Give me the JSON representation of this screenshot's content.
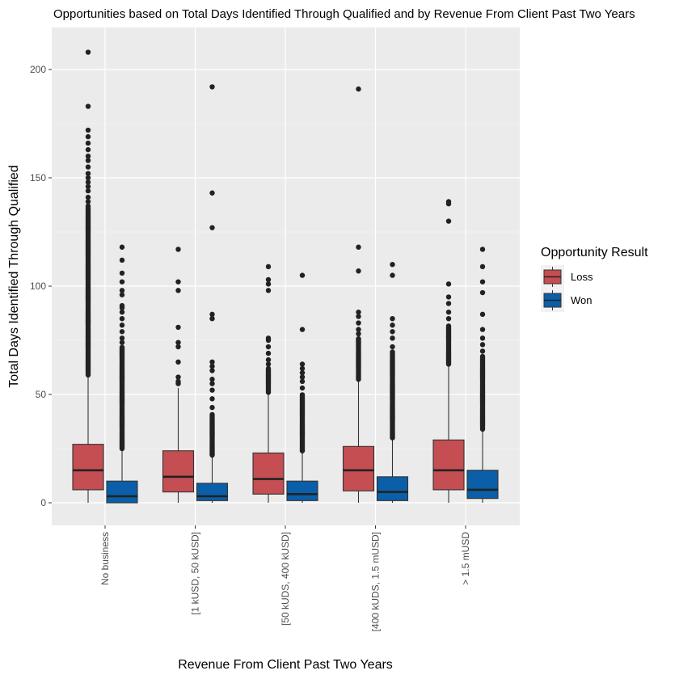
{
  "chart_data": {
    "type": "box",
    "title": "Opportunities based on Total Days Identified Through Qualified and by Revenue From Client Past Two Years",
    "xlabel": "Revenue From Client Past Two Years",
    "ylabel": "Total Days Identified Through Qualified",
    "ylim": [
      -10,
      220
    ],
    "yticks": [
      0,
      50,
      100,
      150,
      200
    ],
    "grid": true,
    "legend": {
      "title": "Opportunity Result",
      "position": "right"
    },
    "categories": [
      "No business",
      "[1 kUSD, 50 kUSD]",
      "[50 kUDS, 400 kUSD]",
      "[400 kUDS, 1.5 mUSD]",
      "> 1.5 mUSD"
    ],
    "series": [
      {
        "name": "Loss",
        "color": "#c44e52",
        "boxes": [
          {
            "min": 0,
            "q1": 6,
            "median": 15,
            "q3": 27,
            "max": 59,
            "outlier_band": [
              59,
              136
            ],
            "outliers": [
              137,
              139,
              141,
              144,
              146,
              148,
              150,
              152,
              155,
              158,
              160,
              163,
              166,
              169,
              172,
              183,
              208
            ]
          },
          {
            "min": 0,
            "q1": 5,
            "median": 12,
            "q3": 24,
            "max": 53,
            "outlier_band": [],
            "outliers": [
              55,
              56,
              58,
              65,
              72,
              74,
              81,
              98,
              102,
              117
            ]
          },
          {
            "min": 0,
            "q1": 4,
            "median": 11,
            "q3": 23,
            "max": 50,
            "outlier_band": [
              51,
              62
            ],
            "outliers": [
              64,
              66,
              69,
              72,
              75,
              76,
              98,
              101,
              103,
              109
            ]
          },
          {
            "min": 0,
            "q1": 5.5,
            "median": 15,
            "q3": 26,
            "max": 56,
            "outlier_band": [
              57,
              76
            ],
            "outliers": [
              78,
              80,
              83,
              86,
              88,
              107,
              118,
              191
            ]
          },
          {
            "min": 0,
            "q1": 6,
            "median": 15,
            "q3": 29,
            "max": 63,
            "outlier_band": [
              64,
              82
            ],
            "outliers": [
              85,
              88,
              92,
              95,
              101,
              130,
              138,
              139
            ]
          }
        ]
      },
      {
        "name": "Won",
        "color": "#0b5fa8",
        "boxes": [
          {
            "min": 0,
            "q1": 0,
            "median": 3,
            "q3": 10,
            "max": 24,
            "outlier_band": [
              25,
              72
            ],
            "outliers": [
              74,
              76,
              79,
              82,
              85,
              88,
              90,
              91,
              96,
              98,
              102,
              106,
              112,
              118
            ]
          },
          {
            "min": 0,
            "q1": 1,
            "median": 3,
            "q3": 9,
            "max": 21,
            "outlier_band": [
              22,
              41
            ],
            "outliers": [
              44,
              48,
              52,
              55,
              57,
              61,
              63,
              65,
              85,
              87,
              127,
              143,
              192
            ]
          },
          {
            "min": 0,
            "q1": 1,
            "median": 4,
            "q3": 10,
            "max": 23,
            "outlier_band": [
              24,
              50
            ],
            "outliers": [
              53,
              56,
              58,
              60,
              62,
              64,
              80,
              105
            ]
          },
          {
            "min": 0,
            "q1": 1,
            "median": 5,
            "q3": 12,
            "max": 29,
            "outlier_band": [
              30,
              70
            ],
            "outliers": [
              72,
              76,
              79,
              82,
              85,
              105,
              110
            ]
          },
          {
            "min": 0,
            "q1": 2,
            "median": 6,
            "q3": 15,
            "max": 33,
            "outlier_band": [
              34,
              68
            ],
            "outliers": [
              70,
              73,
              76,
              80,
              87,
              97,
              102,
              109,
              117
            ]
          }
        ]
      }
    ]
  }
}
